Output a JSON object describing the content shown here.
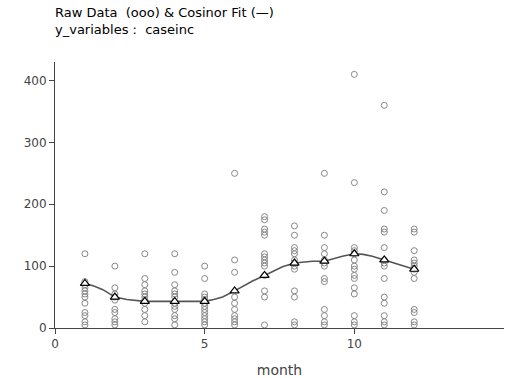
{
  "chart_data": {
    "type": "scatter",
    "title": "Raw Data  (ooo) & Cosinor Fit (—)",
    "subtitle": "y_variables :  caseinc",
    "x_label": "month",
    "xlim": [
      0,
      15
    ],
    "ylim": [
      0,
      430
    ],
    "xticks": [
      0,
      5,
      10
    ],
    "yticks": [
      0,
      100,
      200,
      300,
      400
    ],
    "grid": false,
    "series": [
      {
        "type": "scatter",
        "marker": "open circle",
        "color": "#888888",
        "x": [
          1,
          1,
          1,
          1,
          1,
          1,
          1,
          1,
          1,
          1,
          1,
          1,
          2,
          2,
          2,
          2,
          2,
          2,
          2,
          2,
          2,
          2,
          3,
          3,
          3,
          3,
          3,
          3,
          3,
          3,
          3,
          3,
          3,
          4,
          4,
          4,
          4,
          4,
          4,
          4,
          4,
          4,
          4,
          4,
          4,
          5,
          5,
          5,
          5,
          5,
          5,
          5,
          5,
          5,
          5,
          5,
          5,
          5,
          6,
          6,
          6,
          6,
          6,
          6,
          6,
          6,
          6,
          6,
          7,
          7,
          7,
          7,
          7,
          7,
          7,
          7,
          7,
          7,
          7,
          7,
          7,
          7,
          8,
          8,
          8,
          8,
          8,
          8,
          8,
          8,
          8,
          8,
          8,
          8,
          8,
          9,
          9,
          9,
          9,
          9,
          9,
          9,
          9,
          9,
          9,
          9,
          9,
          9,
          10,
          10,
          10,
          10,
          10,
          10,
          10,
          10,
          10,
          10,
          10,
          10,
          10,
          10,
          10,
          11,
          11,
          11,
          11,
          11,
          11,
          11,
          11,
          11,
          11,
          11,
          11,
          11,
          11,
          11,
          12,
          12,
          12,
          12,
          12,
          12,
          12,
          12,
          12,
          12,
          12,
          12,
          12
        ],
        "values": [
          5,
          10,
          20,
          25,
          40,
          50,
          55,
          60,
          65,
          70,
          75,
          120,
          5,
          10,
          15,
          25,
          30,
          45,
          50,
          55,
          65,
          100,
          10,
          20,
          30,
          40,
          45,
          50,
          55,
          60,
          70,
          80,
          120,
          5,
          15,
          20,
          30,
          35,
          40,
          50,
          55,
          60,
          70,
          90,
          120,
          5,
          10,
          15,
          20,
          25,
          30,
          35,
          40,
          45,
          50,
          55,
          80,
          100,
          5,
          10,
          15,
          20,
          30,
          40,
          50,
          90,
          110,
          250,
          5,
          50,
          60,
          85,
          100,
          105,
          110,
          115,
          120,
          150,
          155,
          160,
          175,
          180,
          5,
          10,
          50,
          60,
          95,
          100,
          105,
          110,
          120,
          125,
          130,
          150,
          165,
          5,
          10,
          20,
          30,
          75,
          80,
          100,
          105,
          110,
          120,
          130,
          150,
          250,
          5,
          10,
          20,
          55,
          65,
          80,
          85,
          95,
          100,
          110,
          120,
          125,
          130,
          235,
          410,
          5,
          10,
          20,
          40,
          50,
          80,
          100,
          105,
          110,
          130,
          155,
          160,
          190,
          220,
          360,
          5,
          10,
          25,
          30,
          80,
          90,
          95,
          100,
          105,
          110,
          125,
          155,
          160
        ]
      },
      {
        "type": "line",
        "line_style": "solid",
        "color": "#555555",
        "x": [
          1,
          1.3,
          1.6,
          2,
          2.4,
          2.8,
          3,
          3.3,
          3.6,
          4,
          4.3,
          4.6,
          5,
          5.3,
          5.6,
          6,
          6.3,
          6.6,
          7,
          7.3,
          7.6,
          8,
          8.3,
          8.6,
          9,
          9.3,
          9.6,
          10,
          10.3,
          10.6,
          11,
          11.3,
          11.6,
          12
        ],
        "values": [
          72,
          68,
          62,
          50,
          46,
          44,
          43,
          43,
          43,
          43,
          43,
          43,
          43,
          46,
          50,
          60,
          68,
          76,
          85,
          92,
          99,
          105,
          107,
          108,
          108,
          112,
          116,
          120,
          119,
          116,
          110,
          106,
          101,
          95
        ]
      },
      {
        "type": "scatter",
        "marker": "open triangle",
        "color": "#000000",
        "x": [
          1,
          2,
          3,
          4,
          5,
          6,
          7,
          8,
          9,
          10,
          11,
          12
        ],
        "values": [
          72,
          50,
          43,
          43,
          43,
          60,
          85,
          105,
          108,
          120,
          110,
          95
        ]
      }
    ]
  }
}
